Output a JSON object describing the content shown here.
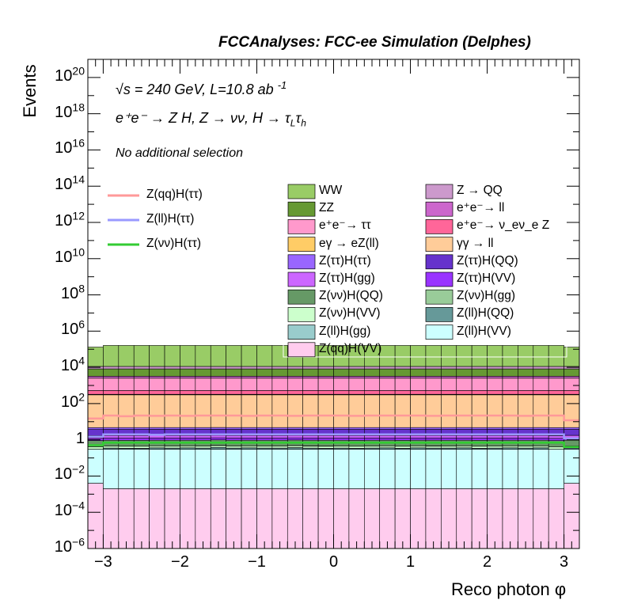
{
  "chart_data": {
    "type": "bar",
    "title": "FCCAnalyses: FCC-ee Simulation (Delphes)",
    "xlabel": "Reco photon φ",
    "ylabel": "Events",
    "y_scale": "log",
    "xlim": [
      -3.2,
      3.2
    ],
    "ylim": [
      1e-06,
      1e+21
    ],
    "x_ticks": [
      "−3",
      "−2",
      "−1",
      "0",
      "1",
      "2",
      "3"
    ],
    "y_ticks": [
      {
        "base": "10",
        "exp": "−6"
      },
      {
        "base": "10",
        "exp": "−4"
      },
      {
        "base": "10",
        "exp": "−2"
      },
      {
        "base": "1",
        "exp": ""
      },
      {
        "base": "10",
        "exp": "2"
      },
      {
        "base": "10",
        "exp": "4"
      },
      {
        "base": "10",
        "exp": "6"
      },
      {
        "base": "10",
        "exp": "8"
      },
      {
        "base": "10",
        "exp": "10"
      },
      {
        "base": "10",
        "exp": "12"
      },
      {
        "base": "10",
        "exp": "14"
      },
      {
        "base": "10",
        "exp": "16"
      },
      {
        "base": "10",
        "exp": "18"
      },
      {
        "base": "10",
        "exp": "20"
      }
    ],
    "annotations": {
      "energy": "√s = 240 GeV, L=10.8 ab",
      "energy_sup": "-1",
      "process": "e⁺e⁻ → Z H, Z → νν, H → τ",
      "process_sub1": "L",
      "process_tau": "τ",
      "process_sub2": "h",
      "selection": "No additional selection"
    },
    "n_bins": 32,
    "stack_order_bottom_to_top": [
      "Z(qq)H(VV)",
      "Z(ll)H(VV)",
      "Z(ll)H(gg)",
      "Z(ll)H(QQ)",
      "Z(νν)H(VV)",
      "Z(νν)H(gg)",
      "Z(νν)H(QQ)",
      "Z(ττ)H(VV)",
      "Z(ττ)H(gg)",
      "Z(ττ)H(QQ)",
      "Z(ττ)H(ττ)",
      "γγ → ll",
      "eγ → eZ(ll)",
      "e⁺e⁻ → ν_eν_e Z",
      "e⁺e⁻ → ττ",
      "e⁺e⁻ → ll",
      "ZZ",
      "Z → QQ",
      "WW"
    ],
    "stack": [
      {
        "name": "Z(qq)H(VV)",
        "color": "#ffccee",
        "values": [
          0.004,
          0.002,
          0.002,
          0.002,
          0.002,
          0.002,
          0.002,
          0.002,
          0.002,
          0.002,
          0.002,
          0.002,
          0.002,
          0.002,
          0.002,
          0.002,
          0.002,
          0.002,
          0.002,
          0.002,
          0.002,
          0.002,
          0.002,
          0.002,
          0.002,
          0.002,
          0.002,
          0.002,
          0.002,
          0.002,
          0.002,
          0.004
        ]
      },
      {
        "name": "Z(ll)H(VV)",
        "color": "#ccffff",
        "values": [
          0.3,
          0.3,
          0.3,
          0.3,
          0.3,
          0.3,
          0.3,
          0.3,
          0.3,
          0.3,
          0.3,
          0.3,
          0.3,
          0.3,
          0.3,
          0.3,
          0.3,
          0.3,
          0.3,
          0.3,
          0.3,
          0.3,
          0.3,
          0.3,
          0.3,
          0.3,
          0.3,
          0.3,
          0.3,
          0.3,
          0.3,
          0.3
        ]
      },
      {
        "name": "Z(ll)H(gg)",
        "color": "#99cccc",
        "values": [
          0,
          0,
          0,
          0,
          0,
          0,
          0,
          1e-06,
          0,
          0,
          0,
          0,
          0,
          0,
          0,
          0,
          0,
          0,
          0,
          0,
          0,
          0,
          0,
          0,
          0,
          0,
          0,
          0,
          0,
          0,
          0,
          0
        ]
      },
      {
        "name": "Z(ll)H(QQ)",
        "color": "#669999",
        "values": [
          1e-05,
          0.05,
          0.04,
          0.04,
          0.06,
          0.05,
          0.06,
          0.05,
          0.08,
          0.05,
          0.06,
          0.05,
          0.05,
          0.07,
          0.05,
          0.04,
          0.05,
          0.04,
          0.05,
          0.06,
          0.04,
          0.06,
          0.05,
          0.05,
          0.06,
          0.04,
          0.05,
          0.06,
          0.05,
          0.06,
          0.0001,
          0.05
        ]
      },
      {
        "name": "Z(νν)H(VV)",
        "color": "#ccffcc",
        "values": [
          0.1,
          0.1,
          0.1,
          0.1,
          0.1,
          0.1,
          0.1,
          0.1,
          0.1,
          0.1,
          0.1,
          0.1,
          0.1,
          0.1,
          0.1,
          0.1,
          0.1,
          0.1,
          0.1,
          0.1,
          0.1,
          0.1,
          0.1,
          0.1,
          0.1,
          0.1,
          0.1,
          0.1,
          0.1,
          0.1,
          0.1,
          0.1
        ]
      },
      {
        "name": "Z(νν)H(gg)",
        "color": "#99cc99",
        "values": [
          0,
          0,
          0,
          0,
          0,
          0,
          0,
          0,
          0.01,
          0,
          0,
          0,
          0,
          0.01,
          0.01,
          0.01,
          0,
          0,
          0,
          0,
          0,
          0,
          0.01,
          0,
          0,
          0,
          0,
          0,
          0,
          0,
          0,
          0
        ]
      },
      {
        "name": "Z(νν)H(QQ)",
        "color": "#669966",
        "values": [
          0.5,
          0.5,
          0.5,
          0.5,
          0.5,
          0.5,
          0.5,
          0.5,
          0.5,
          0.5,
          0.5,
          0.5,
          0.5,
          0.5,
          0.5,
          0.5,
          0.5,
          0.5,
          0.5,
          0.5,
          0.5,
          0.5,
          0.5,
          0.5,
          0.5,
          0.5,
          0.5,
          0.5,
          0.5,
          0.5,
          0.5,
          0.5
        ]
      },
      {
        "name": "Z(ττ)H(VV)",
        "color": "#9933ff",
        "values": [
          0.3,
          0.3,
          0.3,
          0.3,
          0.3,
          0.3,
          0.3,
          0.3,
          0.3,
          0.3,
          0.3,
          0.3,
          0.3,
          0.3,
          0.3,
          0.3,
          0.3,
          0.3,
          0.3,
          0.3,
          0.3,
          0.3,
          0.3,
          0.3,
          0.3,
          0.3,
          0.3,
          0.3,
          0.3,
          0.3,
          0.3,
          0.3
        ]
      },
      {
        "name": "Z(ττ)H(gg)",
        "color": "#cc66ff",
        "values": [
          0.5,
          0.5,
          0.5,
          0.5,
          0.5,
          0.5,
          0.5,
          0.5,
          0.5,
          0.5,
          0.5,
          0.5,
          0.5,
          0.5,
          0.5,
          0.5,
          0.5,
          0.5,
          0.5,
          0.5,
          0.5,
          0.5,
          0.5,
          0.5,
          0.5,
          0.5,
          0.5,
          0.5,
          0.5,
          0.5,
          0.5,
          0.5
        ]
      },
      {
        "name": "Z(ττ)H(QQ)",
        "color": "#6633cc",
        "values": [
          2,
          2,
          2,
          2,
          2,
          2,
          2,
          2,
          2,
          2,
          2,
          2,
          2,
          2,
          2,
          2,
          2,
          2,
          2,
          2,
          2,
          2,
          2,
          2,
          2,
          2,
          2,
          2,
          2,
          2,
          2,
          2
        ]
      },
      {
        "name": "Z(ττ)H(ττ)",
        "color": "#9966ff",
        "values": [
          1,
          1,
          1,
          1,
          1,
          1,
          1,
          1,
          1,
          1,
          1,
          1,
          1,
          1,
          1,
          1,
          1,
          1,
          1,
          1,
          1,
          1,
          1,
          1,
          1,
          1,
          1,
          1,
          1,
          1,
          1,
          1
        ]
      },
      {
        "name": "γγ → ll",
        "color": "#ffcc99",
        "values": [
          300,
          300,
          300,
          300,
          300,
          300,
          300,
          300,
          300,
          300,
          300,
          300,
          300,
          300,
          300,
          300,
          300,
          300,
          300,
          300,
          300,
          300,
          300,
          300,
          300,
          300,
          300,
          300,
          300,
          300,
          300,
          300
        ]
      },
      {
        "name": "eγ → eZ(ll)",
        "color": "#ffcc66",
        "values": [
          20,
          20,
          20,
          20,
          20,
          20,
          20,
          20,
          20,
          20,
          20,
          20,
          20,
          20,
          20,
          20,
          20,
          20,
          20,
          20,
          20,
          20,
          20,
          20,
          20,
          20,
          20,
          20,
          20,
          20,
          20,
          20
        ]
      },
      {
        "name": "e⁺e⁻ → ν_eν_e Z",
        "color": "#ff6699",
        "values": [
          200,
          200,
          200,
          200,
          200,
          200,
          200,
          200,
          200,
          200,
          200,
          200,
          200,
          200,
          200,
          200,
          200,
          200,
          200,
          200,
          200,
          200,
          200,
          200,
          200,
          200,
          200,
          200,
          200,
          200,
          200,
          200
        ]
      },
      {
        "name": "e⁺e⁻ → ττ",
        "color": "#ff99cc",
        "values": [
          2000,
          2000,
          2000,
          2000,
          2000,
          2000,
          2000,
          2000,
          2000,
          2000,
          2000,
          2000,
          2000,
          2000,
          2000,
          2000,
          2000,
          2000,
          2000,
          2000,
          2000,
          2000,
          2000,
          2000,
          2000,
          2000,
          2000,
          2000,
          2000,
          2000,
          2000,
          2000
        ]
      },
      {
        "name": "e⁺e⁻ → ll",
        "color": "#cc66cc",
        "values": [
          700,
          700,
          700,
          700,
          700,
          700,
          700,
          700,
          700,
          700,
          700,
          700,
          700,
          700,
          700,
          700,
          700,
          700,
          700,
          700,
          700,
          700,
          700,
          700,
          700,
          700,
          700,
          700,
          700,
          700,
          700,
          700
        ]
      },
      {
        "name": "ZZ",
        "color": "#669933",
        "values": [
          5000,
          5000,
          5000,
          5000,
          5000,
          5000,
          5000,
          5000,
          5000,
          5000,
          5000,
          5000,
          5000,
          5000,
          5000,
          5000,
          5000,
          5000,
          5000,
          5000,
          5000,
          5000,
          5000,
          5000,
          5000,
          5000,
          5000,
          5000,
          5000,
          5000,
          5000,
          5000
        ]
      },
      {
        "name": "Z → QQ",
        "color": "#cc99cc",
        "values": [
          3000,
          3000,
          3000,
          3000,
          3000,
          3000,
          3000,
          3000,
          3000,
          3000,
          3000,
          3000,
          3000,
          3000,
          3000,
          3000,
          3000,
          3000,
          3000,
          3000,
          3000,
          3000,
          3000,
          3000,
          3000,
          3000,
          3000,
          3000,
          3000,
          3000,
          3000,
          3000
        ]
      },
      {
        "name": "WW",
        "color": "#99cc66",
        "values": [
          120000,
          150000,
          150000,
          150000,
          150000,
          150000,
          150000,
          150000,
          150000,
          150000,
          150000,
          150000,
          150000,
          150000,
          150000,
          150000,
          150000,
          150000,
          150000,
          150000,
          150000,
          150000,
          150000,
          150000,
          150000,
          150000,
          150000,
          150000,
          150000,
          150000,
          150000,
          120000
        ]
      }
    ],
    "signals": [
      {
        "name": "Z(qq)H(ττ)",
        "color": "#ff9999",
        "values": [
          15,
          22,
          20,
          22,
          21,
          22,
          21,
          22,
          22,
          22,
          21,
          22,
          22,
          21,
          22,
          22,
          22,
          21,
          22,
          22,
          22,
          22,
          21,
          22,
          22,
          22,
          22,
          22,
          21,
          22,
          22,
          12
        ]
      },
      {
        "name": "Z(ll)H(ττ)",
        "color": "#9999ff",
        "values": [
          1.5,
          2.0,
          2.0,
          2.0,
          1.9,
          2.0,
          2.0,
          2.0,
          2.0,
          2.0,
          2.0,
          2.0,
          2.0,
          2.0,
          2.0,
          2.0,
          2.0,
          2.0,
          2.0,
          2.0,
          2.0,
          2.0,
          2.0,
          2.0,
          2.0,
          2.0,
          2.0,
          2.0,
          2.0,
          2.0,
          2.0,
          1.2
        ]
      },
      {
        "name": "Z(νν)H(ττ)",
        "color": "#33cc33",
        "values": [
          0.5,
          0.7,
          0.7,
          0.7,
          0.7,
          0.7,
          0.7,
          0.7,
          0.7,
          0.7,
          0.7,
          0.7,
          0.7,
          0.7,
          0.7,
          0.7,
          0.7,
          0.7,
          0.7,
          0.7,
          0.7,
          0.7,
          0.7,
          0.7,
          0.7,
          0.7,
          0.7,
          0.7,
          0.7,
          0.7,
          0.7,
          0.4
        ]
      }
    ],
    "legend_signals": [
      "Z(qq)H(ττ)",
      "Z(ll)H(ττ)",
      "Z(νν)H(ττ)"
    ],
    "legend_backgrounds": [
      {
        "name": "WW",
        "color": "#99cc66"
      },
      {
        "name": "Z → QQ",
        "color": "#cc99cc"
      },
      {
        "name": "ZZ",
        "color": "#669933"
      },
      {
        "name": "e⁺e⁻→ ll",
        "color": "#cc66cc"
      },
      {
        "name": "e⁺e⁻→ ττ",
        "color": "#ff99cc"
      },
      {
        "name": "e⁺e⁻→ ν_eν_e Z",
        "color": "#ff6699"
      },
      {
        "name": "eγ → eZ(ll)",
        "color": "#ffcc66"
      },
      {
        "name": "γγ → ll",
        "color": "#ffcc99"
      },
      {
        "name": "Z(ττ)H(ττ)",
        "color": "#9966ff"
      },
      {
        "name": "Z(ττ)H(QQ)",
        "color": "#6633cc"
      },
      {
        "name": "Z(ττ)H(gg)",
        "color": "#cc66ff"
      },
      {
        "name": "Z(ττ)H(VV)",
        "color": "#9933ff"
      },
      {
        "name": "Z(νν)H(QQ)",
        "color": "#669966"
      },
      {
        "name": "Z(νν)H(gg)",
        "color": "#99cc99"
      },
      {
        "name": "Z(νν)H(VV)",
        "color": "#ccffcc"
      },
      {
        "name": "Z(ll)H(QQ)",
        "color": "#669999"
      },
      {
        "name": "Z(ll)H(gg)",
        "color": "#99cccc"
      },
      {
        "name": "Z(ll)H(VV)",
        "color": "#ccffff"
      },
      {
        "name": "Z(qq)H(VV)",
        "color": "#ffccee"
      }
    ]
  }
}
